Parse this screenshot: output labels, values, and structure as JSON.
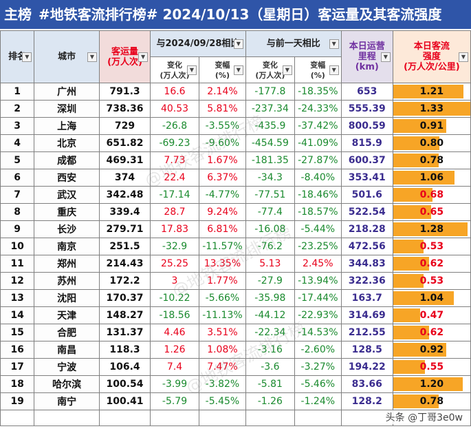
{
  "title": {
    "tag": "主榜",
    "text": "#地铁客流排行榜# 2024/10/13（星期日）客运量及其客流强度",
    "date_part": "2024/10/13"
  },
  "headers": {
    "rank": "排名",
    "city": "城市",
    "volume": "客运量",
    "volume_unit": "(万人次)",
    "compare_prev": "与2024/09/28相比",
    "compare_day": "与前一天相比",
    "change": "变化",
    "change_unit": "(万人次)",
    "pct": "变幅",
    "pct_unit": "(%)",
    "km_line1": "本日运营",
    "km_line2": "里程",
    "km_line3": "(km)",
    "int_line1": "本日客流",
    "int_line2": "强度",
    "int_line3": "(万人次/公里)"
  },
  "rows": [
    {
      "rank": "1",
      "city": "广州",
      "volume": "791.3",
      "c1": "16.6",
      "p1": "2.14%",
      "c2": "-177.8",
      "p2": "-18.35%",
      "km": "653",
      "intensity": "1.21",
      "level": 1.21
    },
    {
      "rank": "2",
      "city": "深圳",
      "volume": "738.36",
      "c1": "40.53",
      "p1": "5.81%",
      "c2": "-237.34",
      "p2": "-24.33%",
      "km": "555.39",
      "intensity": "1.33",
      "level": 1.33
    },
    {
      "rank": "3",
      "city": "上海",
      "volume": "729",
      "c1": "-26.8",
      "p1": "-3.55%",
      "c2": "-435.9",
      "p2": "-37.42%",
      "km": "800.59",
      "intensity": "0.91",
      "level": 0.91
    },
    {
      "rank": "4",
      "city": "北京",
      "volume": "651.82",
      "c1": "-69.23",
      "p1": "-9.60%",
      "c2": "-454.59",
      "p2": "-41.09%",
      "km": "815.9",
      "intensity": "0.80",
      "level": 0.8
    },
    {
      "rank": "5",
      "city": "成都",
      "volume": "469.31",
      "c1": "7.73",
      "p1": "1.67%",
      "c2": "-181.35",
      "p2": "-27.87%",
      "km": "600.37",
      "intensity": "0.78",
      "level": 0.78
    },
    {
      "rank": "6",
      "city": "西安",
      "volume": "374",
      "c1": "22.4",
      "p1": "6.37%",
      "c2": "-34.3",
      "p2": "-8.40%",
      "km": "353.41",
      "intensity": "1.06",
      "level": 1.06
    },
    {
      "rank": "7",
      "city": "武汉",
      "volume": "342.48",
      "c1": "-17.14",
      "p1": "-4.77%",
      "c2": "-77.51",
      "p2": "-18.46%",
      "km": "501.6",
      "intensity": "0.68",
      "level": 0.68
    },
    {
      "rank": "8",
      "city": "重庆",
      "volume": "339.4",
      "c1": "28.7",
      "p1": "9.24%",
      "c2": "-77.4",
      "p2": "-18.57%",
      "km": "522.54",
      "intensity": "0.65",
      "level": 0.65
    },
    {
      "rank": "9",
      "city": "长沙",
      "volume": "279.71",
      "c1": "17.83",
      "p1": "6.81%",
      "c2": "-16.08",
      "p2": "-5.44%",
      "km": "218.28",
      "intensity": "1.28",
      "level": 1.28
    },
    {
      "rank": "10",
      "city": "南京",
      "volume": "251.5",
      "c1": "-32.9",
      "p1": "-11.57%",
      "c2": "-76.2",
      "p2": "-23.25%",
      "km": "472.56",
      "intensity": "0.53",
      "level": 0.53
    },
    {
      "rank": "11",
      "city": "郑州",
      "volume": "214.43",
      "c1": "25.25",
      "p1": "13.35%",
      "c2": "5.13",
      "p2": "2.45%",
      "km": "344.83",
      "intensity": "0.62",
      "level": 0.62
    },
    {
      "rank": "12",
      "city": "苏州",
      "volume": "172.2",
      "c1": "3",
      "p1": "1.77%",
      "c2": "-27.9",
      "p2": "-13.94%",
      "km": "322.36",
      "intensity": "0.53",
      "level": 0.53
    },
    {
      "rank": "13",
      "city": "沈阳",
      "volume": "170.37",
      "c1": "-10.22",
      "p1": "-5.66%",
      "c2": "-35.98",
      "p2": "-17.44%",
      "km": "163.7",
      "intensity": "1.04",
      "level": 1.04
    },
    {
      "rank": "14",
      "city": "天津",
      "volume": "148.27",
      "c1": "-18.56",
      "p1": "-11.13%",
      "c2": "-44.12",
      "p2": "-22.93%",
      "km": "314.69",
      "intensity": "0.47",
      "level": 0.47
    },
    {
      "rank": "15",
      "city": "合肥",
      "volume": "131.37",
      "c1": "4.46",
      "p1": "3.51%",
      "c2": "-22.34",
      "p2": "-14.53%",
      "km": "212.55",
      "intensity": "0.62",
      "level": 0.62
    },
    {
      "rank": "16",
      "city": "南昌",
      "volume": "118.3",
      "c1": "1.26",
      "p1": "1.08%",
      "c2": "-3.16",
      "p2": "-2.60%",
      "km": "128.5",
      "intensity": "0.92",
      "level": 0.92
    },
    {
      "rank": "17",
      "city": "宁波",
      "volume": "106.4",
      "c1": "7.4",
      "p1": "7.47%",
      "c2": "-3.6",
      "p2": "-3.27%",
      "km": "194.22",
      "intensity": "0.55",
      "level": 0.55
    },
    {
      "rank": "18",
      "city": "哈尔滨",
      "volume": "100.54",
      "c1": "-3.99",
      "p1": "-3.82%",
      "c2": "-5.81",
      "p2": "-5.46%",
      "km": "83.66",
      "intensity": "1.20",
      "level": 1.2
    },
    {
      "rank": "19",
      "city": "南宁",
      "volume": "100.41",
      "c1": "-5.79",
      "p1": "-5.45%",
      "c2": "-1.26",
      "p2": "-1.24%",
      "km": "128.2",
      "intensity": "0.78",
      "level": 0.78
    }
  ],
  "intensity_max": 1.33,
  "footer": "头条 @丁哥3e0w",
  "watermarks": [
    "@地铁客流排行榜",
    "@地铁客流排行榜",
    "@地铁客流排行榜"
  ],
  "colors": {
    "header_bg": "#2f55a8",
    "bar": "#f7a526",
    "positive": "#e8001b",
    "negative": "#1a8a2e",
    "km": "#3b2d8f"
  }
}
